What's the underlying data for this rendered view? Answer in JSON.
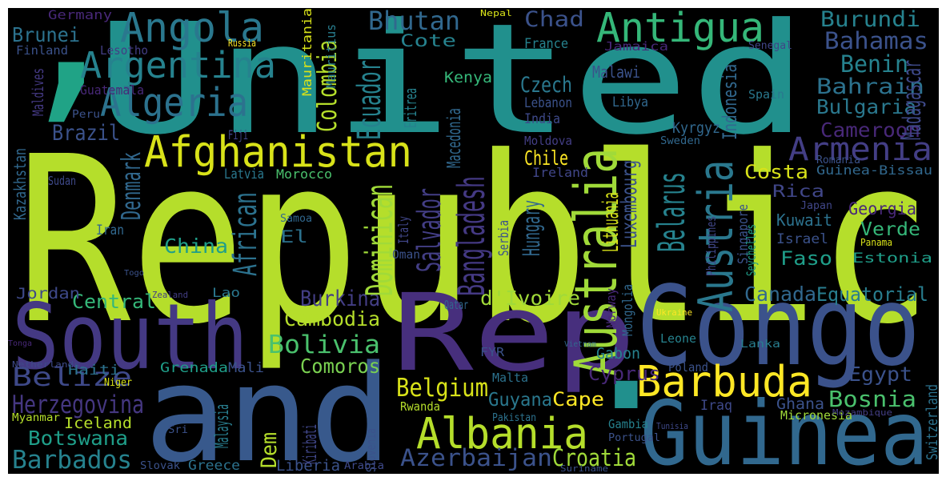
{
  "words": [
    "United",
    "Republic",
    "’",
    "South",
    "Rep",
    "Congo",
    "and",
    "Guinea",
    ".",
    "Australia",
    "Austria",
    "Afghanistan",
    "Algeria",
    "Argentina",
    "Angola",
    "Antigua",
    "Barbuda",
    "Albania",
    "Bosnia",
    "Armenia",
    "Belize",
    "Herzegovina",
    "Botswana",
    "Barbados",
    "Azerbaijan",
    "Croatia",
    "Belgium",
    "Bhutan",
    "Chad",
    "Burundi",
    "Bahamas",
    "Benin",
    "Bahrain",
    "Bulgaria",
    "Cameroon",
    "Guinea-Bissau",
    "Georgia",
    "Verde",
    "Estonia",
    "Equatorial",
    "Egypt",
    "Costa",
    "Rica",
    "Kuwait",
    "Israel",
    "Faso",
    "Canada",
    "Cyprus",
    "Cape",
    "Guyana",
    "Gabon",
    "Ghana",
    "Iraq",
    "Micronesia",
    "Cambodia",
    "Bolivia",
    "Comoros",
    "Burkina",
    "Central",
    "Jordan",
    "Haiti",
    "Grenada",
    "Mali",
    "Iceland",
    "Greece",
    "Liberia",
    "Kiribati",
    "Dem",
    "Malaysia",
    "d'Ivoire",
    "Dominican",
    "African",
    "El",
    "China",
    "Denmark",
    "Brazil",
    "Bangladesh",
    "Salvador",
    "Ecuador",
    "Colombia",
    "Cote",
    "Czech",
    "Chile",
    "Belarus",
    "Lithuania",
    "Luxembourg",
    "Hungary",
    "Indonesia",
    "Madagascar",
    "Kyrgyz",
    "Libya",
    "Malawi",
    "Lebanon",
    "India",
    "Kenya",
    "Eritrea",
    "Latvia",
    "Morocco",
    "Fiji",
    "Iran",
    "Lao",
    "Ireland",
    "Moldova",
    "Macedonia",
    "Italy",
    "Samoa",
    "Oman",
    "Serbia",
    "Mauritania",
    "Mauritius",
    "Russia",
    "Lesotho",
    "Finland",
    "Brunei",
    "Germany",
    "Nepal",
    "France",
    "Jamaica",
    "Senegal",
    "Peru",
    "Guatemala",
    "Maldives",
    "Kazakhstan",
    "Sudan",
    "Togo",
    "Niger",
    "Myanmar",
    "Sri",
    "Rwanda",
    "Pakistan",
    "Malta",
    "FYR",
    "Qatar",
    "Leone",
    "Poland",
    "Lanka",
    "Gambia",
    "Portugal",
    "Spain",
    "Sweden",
    "Panama",
    "Singapore",
    "Seychelles",
    "Philippines",
    "Mongolia",
    "Norway",
    "Switzerland",
    "Slovenia",
    "Slovak",
    "Arabia",
    "Suriname",
    "Mozambique",
    "Romania",
    "Japan",
    "Zealand",
    "Netherlands",
    "Ukraine",
    "Vietnam",
    "Tunisia",
    "Tonga"
  ]
}
